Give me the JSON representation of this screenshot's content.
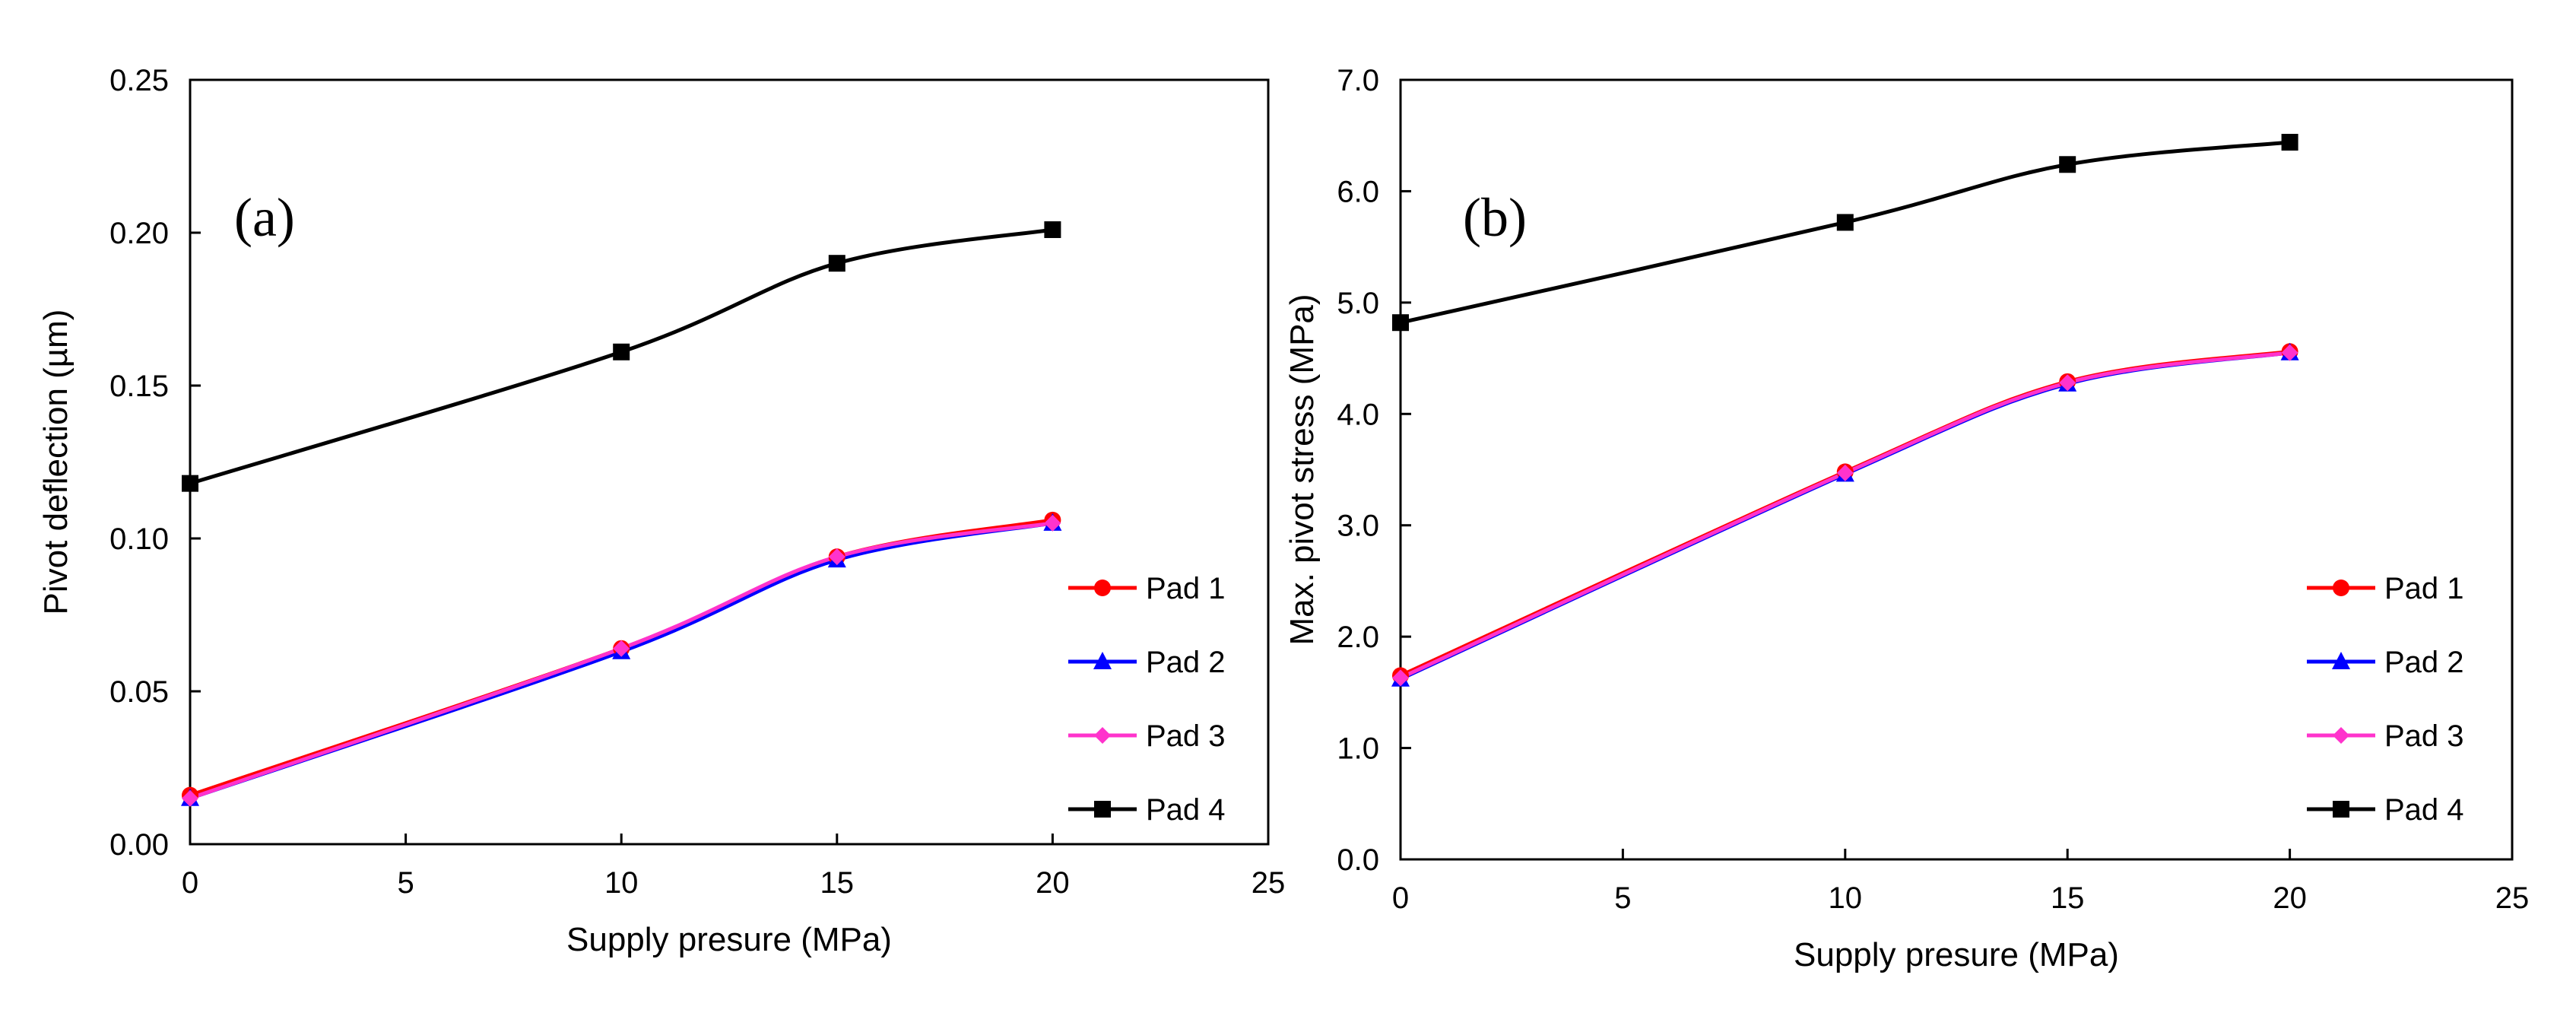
{
  "colors": {
    "pad1": "#ff0000",
    "pad2": "#0000ff",
    "pad3": "#ff33cc",
    "pad4": "#000000"
  },
  "chart_data": [
    {
      "type": "line",
      "panel_label": "(a)",
      "title": "",
      "xlabel": "Supply presure (MPa)",
      "ylabel": "Pivot deflection (µm)",
      "xlim": [
        0,
        25
      ],
      "ylim": [
        0,
        0.25
      ],
      "x_ticks": [
        "0",
        "5",
        "10",
        "15",
        "20",
        "25"
      ],
      "y_ticks": [
        "0.00",
        "0.05",
        "0.10",
        "0.15",
        "0.20",
        "0.25"
      ],
      "legend_position": "right",
      "x": [
        0,
        10,
        15,
        20
      ],
      "series": [
        {
          "name": "Pad 1",
          "marker": "circle",
          "values": [
            0.016,
            0.064,
            0.094,
            0.106
          ]
        },
        {
          "name": "Pad 2",
          "marker": "triangle",
          "values": [
            0.015,
            0.063,
            0.093,
            0.105
          ]
        },
        {
          "name": "Pad 3",
          "marker": "diamond",
          "values": [
            0.015,
            0.064,
            0.094,
            0.105
          ]
        },
        {
          "name": "Pad 4",
          "marker": "square",
          "values": [
            0.118,
            0.161,
            0.19,
            0.201
          ]
        }
      ]
    },
    {
      "type": "line",
      "panel_label": "(b)",
      "title": "",
      "xlabel": "Supply presure (MPa)",
      "ylabel": "Max. pivot stress (MPa)",
      "xlim": [
        0,
        25
      ],
      "ylim": [
        0,
        7
      ],
      "x_ticks": [
        "0",
        "5",
        "10",
        "15",
        "20",
        "25"
      ],
      "y_ticks": [
        "0.0",
        "1.0",
        "2.0",
        "3.0",
        "4.0",
        "5.0",
        "6.0",
        "7.0"
      ],
      "legend_position": "right",
      "x": [
        0,
        10,
        15,
        20
      ],
      "series": [
        {
          "name": "Pad 1",
          "marker": "circle",
          "values": [
            1.65,
            3.48,
            4.29,
            4.56
          ]
        },
        {
          "name": "Pad 2",
          "marker": "triangle",
          "values": [
            1.62,
            3.46,
            4.27,
            4.55
          ]
        },
        {
          "name": "Pad 3",
          "marker": "diamond",
          "values": [
            1.63,
            3.47,
            4.28,
            4.55
          ]
        },
        {
          "name": "Pad 4",
          "marker": "square",
          "values": [
            4.82,
            5.72,
            6.24,
            6.44
          ]
        }
      ]
    }
  ]
}
